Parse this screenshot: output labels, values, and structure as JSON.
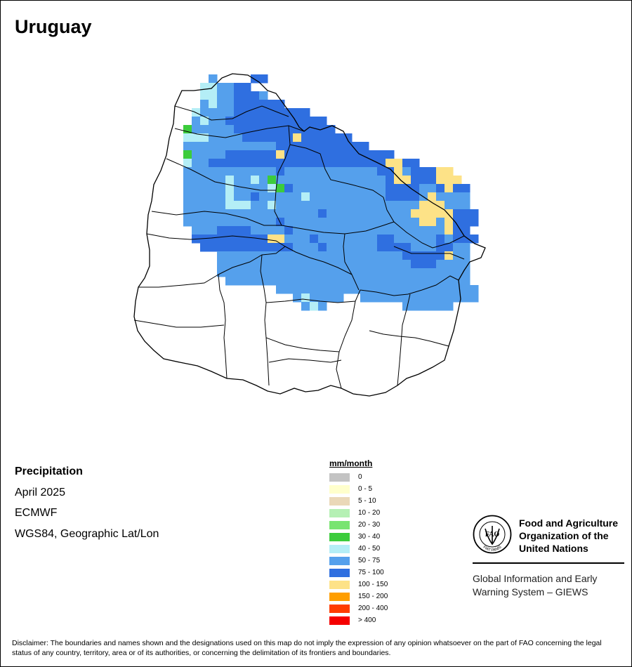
{
  "title": "Uruguay",
  "info": {
    "variable": "Precipitation",
    "period": "April 2025",
    "source": "ECMWF",
    "projection": "WGS84, Geographic Lat/Lon"
  },
  "legend": {
    "unit": "mm/month",
    "classes": [
      {
        "label": "0",
        "color": "#c3c3c3"
      },
      {
        "label": "0 - 5",
        "color": "#ffffcc"
      },
      {
        "label": "5 - 10",
        "color": "#ead8b8"
      },
      {
        "label": "10 - 20",
        "color": "#b5f0b4"
      },
      {
        "label": "20 - 30",
        "color": "#79e471"
      },
      {
        "label": "30 - 40",
        "color": "#3ccc3c"
      },
      {
        "label": "40 - 50",
        "color": "#b4eef6"
      },
      {
        "label": "50 - 75",
        "color": "#55a0ec"
      },
      {
        "label": "75 - 100",
        "color": "#2f6fe0"
      },
      {
        "label": "100 - 150",
        "color": "#fde287"
      },
      {
        "label": "150 - 200",
        "color": "#ff9e00"
      },
      {
        "label": "200 - 400",
        "color": "#ff3c00"
      },
      {
        "label": "> 400",
        "color": "#f50000"
      }
    ]
  },
  "map_cells": [
    "........a....hh.........................",
    ".......ggaahh...........................",
    ".......ggbbhhhb.........................",
    ".......bgbbhhhhhh.......................",
    "......gbbbbhhhhhhhhh....................",
    "......bgbbhhhhhhhhhhhh..................",
    ".....cbbbbbhhhhhhhhhhhh.................",
    ".....gggbbbbhhhhhhfhhhhhh...............",
    ".....bbbbbbbbbbbhhhhhhhhhhh.............",
    ".....cbbbbhhhhhhfhhhhhhhhhhhhh..........",
    ".....gbbhhhhhhhhhhhhhhhhhhhhhffhh.......",
    ".....bbbbbbbbbbbhbbbbbbbbbbbhhfbhhhff...",
    ".....bbbbbgbbgbcbbbbbbbbbbbbbhffhhhfff..",
    ".....bbbbbgbbbbgchbbbbbbbbbbbhhhhbbhfhh.",
    ".....bbbbbgbbhbbbbbgbbbbbbbbbhhhhbfbbbb.",
    ".....bbbbbgggbbgbbbbbbbbbbbbbbbbbfffbbb.",
    ".....bbbbbbbbbbbbbbbbhbbbbbbbbbbfffffhhh",
    ".....bbbbbbbbbbbhbbbbbbbbbbbbbbbbffbfhhh",
    "......bbbhhhhbbbbhbbbbbbbbbbbbbbbbbbfhh.",
    "......hhhhhhhhhffbbbhbbbbbbbhhbbbbbhbhhh",
    ".......hhhhhhhhhhhbbbhbbbbbbhhhhbbbhhbb.",
    ".........bbbbbbbbbbbbbbbbbbbbbbhhhhhfbb.",
    ".........bbbbbbbbbbbbbbbbbbbbbbbhhhbbbb.",
    ".........bbbbbbbbbbbbbbbbbbbbbbbbbbbbbb.",
    "..........bbbbbbbbbbbbbbbbbbbbbbbbbbbbb.",
    "................bbbbbbbbbbbbbbbbbbbbbbbb.",
    "..................bgbbbb..bbbbbbbbbbbbbb",
    "...................bgb.........bbbbbb..."
  ],
  "map_colors": {
    "g": "#b4eef6",
    "b": "#55a0ec",
    "h": "#2f6fe0",
    "f": "#fde287",
    "c": "#3ccc3c",
    "a": "#55a0ec"
  },
  "fao": {
    "org_name": "Food and Agriculture\nOrganization of the\nUnited Nations",
    "logo_letters": "FAO",
    "logo_motto": "FIAT PANIS",
    "system": "Global Information and Early\nWarning System – GIEWS"
  },
  "disclaimer": "Disclaimer: The boundaries and names shown and the designations used on this map do not imply the expression of any opinion whatsoever on the part of FAO concerning the legal status of any country, territory, area or of its authorities, or concerning the delimitation of its frontiers and boundaries."
}
